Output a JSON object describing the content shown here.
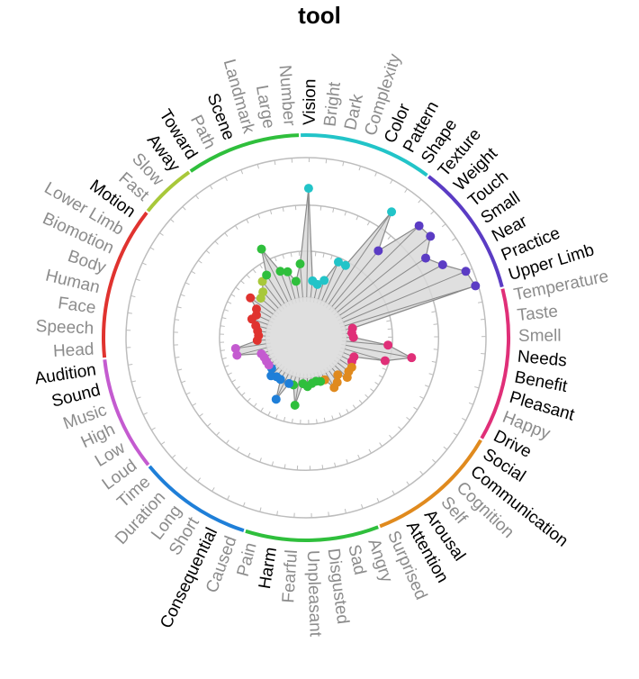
{
  "chart_data": {
    "type": "radial",
    "title": "tool",
    "ring_levels": [
      0.33,
      0.66,
      1.0
    ],
    "label_colors": {
      "high": "#000000",
      "low": "#8c8c8c"
    },
    "group_colors": {
      "vision": "#22c4c8",
      "somatic": "#5b3cc4",
      "audition": "#c45bd0",
      "gustation": "#e02f78",
      "temporal": "#1f7fd8",
      "causal": "#2fbf3c",
      "emotion": "#e08a1e",
      "social": "#e08a1e",
      "motion": "#a8c83a",
      "spatial": "#2fbf3c",
      "body": "#e0332f"
    },
    "arcs": [
      {
        "group": "vision",
        "color": "#22c4c8",
        "from": "Vision",
        "to": "Shape"
      },
      {
        "group": "somatic",
        "color": "#5b3cc4",
        "from": "Texture",
        "to": "Upper Limb"
      },
      {
        "group": "gustation",
        "color": "#e02f78",
        "from": "Temperature",
        "to": "Drive"
      },
      {
        "group": "social",
        "color": "#e08a1e",
        "from": "Social",
        "to": "Surprised"
      },
      {
        "group": "emotion",
        "color": "#2fbf3c",
        "from": "Angry",
        "to": "Pain"
      },
      {
        "group": "temporal",
        "color": "#1f7fd8",
        "from": "Caused",
        "to": "Time"
      },
      {
        "group": "audition",
        "color": "#c45bd0",
        "from": "Loud",
        "to": "Audition"
      },
      {
        "group": "body",
        "color": "#e0332f",
        "from": "Head",
        "to": "Motion"
      },
      {
        "group": "motion",
        "color": "#a8c83a",
        "from": "Fast",
        "to": "Away"
      },
      {
        "group": "spatial",
        "color": "#2fbf3c",
        "from": "Toward",
        "to": "Number"
      }
    ],
    "features": [
      {
        "name": "Vision",
        "value": 0.78,
        "emphasis": "high"
      },
      {
        "name": "Bright",
        "value": 0.12,
        "emphasis": "low"
      },
      {
        "name": "Dark",
        "value": 0.1,
        "emphasis": "low"
      },
      {
        "name": "Complexity",
        "value": 0.14,
        "emphasis": "low"
      },
      {
        "name": "Color",
        "value": 0.3,
        "emphasis": "high"
      },
      {
        "name": "Pattern",
        "value": 0.3,
        "emphasis": "high"
      },
      {
        "name": "Shape",
        "value": 0.8,
        "emphasis": "high"
      },
      {
        "name": "Texture",
        "value": 0.52,
        "emphasis": "high"
      },
      {
        "name": "Weight",
        "value": 0.85,
        "emphasis": "high"
      },
      {
        "name": "Touch",
        "value": 0.86,
        "emphasis": "high"
      },
      {
        "name": "Small",
        "value": 0.74,
        "emphasis": "high"
      },
      {
        "name": "Near",
        "value": 0.82,
        "emphasis": "high"
      },
      {
        "name": "Practice",
        "value": 0.95,
        "emphasis": "high"
      },
      {
        "name": "Upper Limb",
        "value": 0.98,
        "emphasis": "high"
      },
      {
        "name": "Temperature",
        "value": 0.05,
        "emphasis": "low"
      },
      {
        "name": "Taste",
        "value": 0.04,
        "emphasis": "low"
      },
      {
        "name": "Smell",
        "value": 0.05,
        "emphasis": "low"
      },
      {
        "name": "Needs",
        "value": 0.3,
        "emphasis": "high"
      },
      {
        "name": "Benefit",
        "value": 0.48,
        "emphasis": "high"
      },
      {
        "name": "Pleasant",
        "value": 0.3,
        "emphasis": "high"
      },
      {
        "name": "Happy",
        "value": 0.08,
        "emphasis": "low"
      },
      {
        "name": "Drive",
        "value": 0.08,
        "emphasis": "high"
      },
      {
        "name": "Social",
        "value": 0.1,
        "emphasis": "high"
      },
      {
        "name": "Communication",
        "value": 0.1,
        "emphasis": "high"
      },
      {
        "name": "Cognition",
        "value": 0.12,
        "emphasis": "low"
      },
      {
        "name": "Self",
        "value": 0.06,
        "emphasis": "low"
      },
      {
        "name": "Arousal",
        "value": 0.1,
        "emphasis": "high"
      },
      {
        "name": "Attention",
        "value": 0.12,
        "emphasis": "high"
      },
      {
        "name": "Surprised",
        "value": 0.04,
        "emphasis": "low"
      },
      {
        "name": "Angry",
        "value": 0.04,
        "emphasis": "low"
      },
      {
        "name": "Sad",
        "value": 0.03,
        "emphasis": "low"
      },
      {
        "name": "Disgusted",
        "value": 0.04,
        "emphasis": "low"
      },
      {
        "name": "Unpleasant",
        "value": 0.06,
        "emphasis": "low"
      },
      {
        "name": "Fearful",
        "value": 0.04,
        "emphasis": "low"
      },
      {
        "name": "Harm",
        "value": 0.2,
        "emphasis": "high"
      },
      {
        "name": "Pain",
        "value": 0.06,
        "emphasis": "low"
      },
      {
        "name": "Caused",
        "value": 0.06,
        "emphasis": "low"
      },
      {
        "name": "Consequential",
        "value": 0.2,
        "emphasis": "high"
      },
      {
        "name": "Short",
        "value": 0.06,
        "emphasis": "low"
      },
      {
        "name": "Long",
        "value": 0.06,
        "emphasis": "low"
      },
      {
        "name": "Duration",
        "value": 0.08,
        "emphasis": "low"
      },
      {
        "name": "Time",
        "value": 0.04,
        "emphasis": "low"
      },
      {
        "name": "Loud",
        "value": 0.04,
        "emphasis": "low"
      },
      {
        "name": "Low",
        "value": 0.04,
        "emphasis": "low"
      },
      {
        "name": "High",
        "value": 0.04,
        "emphasis": "low"
      },
      {
        "name": "Music",
        "value": 0.05,
        "emphasis": "low"
      },
      {
        "name": "Sound",
        "value": 0.22,
        "emphasis": "high"
      },
      {
        "name": "Audition",
        "value": 0.22,
        "emphasis": "high"
      },
      {
        "name": "Head",
        "value": 0.06,
        "emphasis": "low"
      },
      {
        "name": "Speech",
        "value": 0.05,
        "emphasis": "low"
      },
      {
        "name": "Face",
        "value": 0.06,
        "emphasis": "low"
      },
      {
        "name": "Human",
        "value": 0.08,
        "emphasis": "low"
      },
      {
        "name": "Body",
        "value": 0.12,
        "emphasis": "low"
      },
      {
        "name": "Biomotion",
        "value": 0.1,
        "emphasis": "low"
      },
      {
        "name": "Lower Limb",
        "value": 0.12,
        "emphasis": "low"
      },
      {
        "name": "Motion",
        "value": 0.2,
        "emphasis": "high"
      },
      {
        "name": "Fast",
        "value": 0.14,
        "emphasis": "low"
      },
      {
        "name": "Slow",
        "value": 0.16,
        "emphasis": "low"
      },
      {
        "name": "Away",
        "value": 0.22,
        "emphasis": "high"
      },
      {
        "name": "Toward",
        "value": 0.24,
        "emphasis": "high"
      },
      {
        "name": "Path",
        "value": 0.42,
        "emphasis": "low"
      },
      {
        "name": "Scene",
        "value": 0.22,
        "emphasis": "high"
      },
      {
        "name": "Landmark",
        "value": 0.2,
        "emphasis": "low"
      },
      {
        "name": "Large",
        "value": 0.12,
        "emphasis": "low"
      },
      {
        "name": "Number",
        "value": 0.24,
        "emphasis": "low"
      }
    ]
  }
}
